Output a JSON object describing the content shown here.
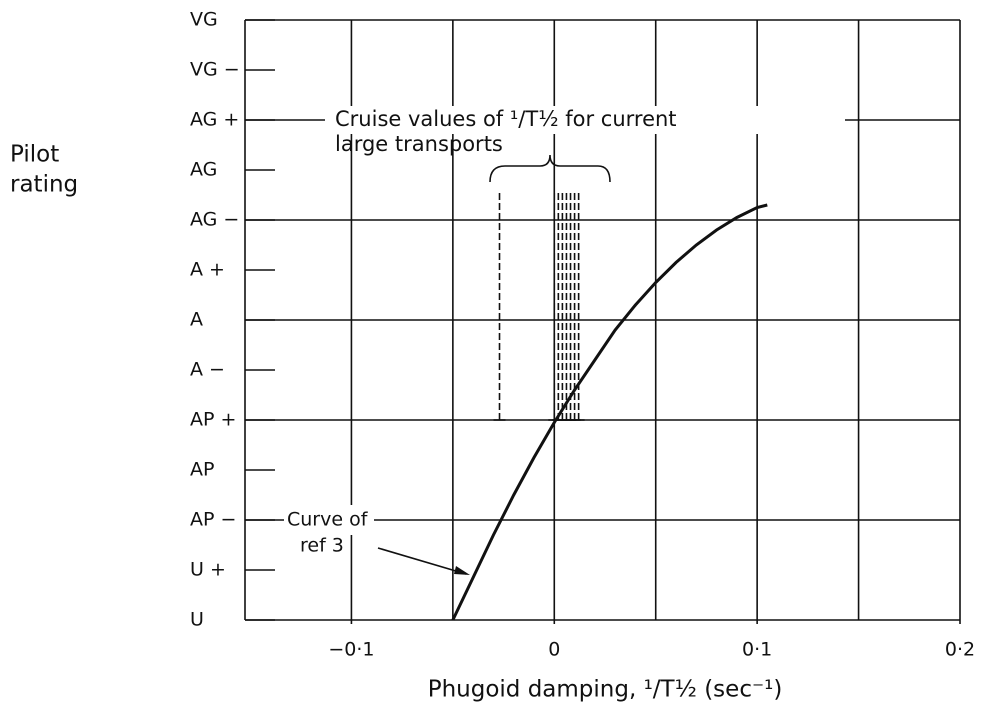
{
  "chart_data": {
    "type": "line",
    "ylabel": [
      "Pilot",
      "rating"
    ],
    "xlabel": "Phugoid damping, ¹/T½ (sec⁻¹)",
    "xlim": [
      -0.15,
      0.2
    ],
    "xticks": [
      {
        "value": -0.1,
        "label": "−0·1"
      },
      0,
      {
        "value": 0.1,
        "label": "0·1"
      },
      {
        "value": 0.2,
        "label": "0·2"
      }
    ],
    "xgrid": [
      -0.1,
      -0.05,
      0,
      0.05,
      0.1,
      0.15,
      0.2
    ],
    "ylim": [
      0,
      12
    ],
    "yticks": [
      {
        "value": 0,
        "label": "U"
      },
      {
        "value": 1,
        "label": "U +"
      },
      {
        "value": 2,
        "label": "AP −"
      },
      {
        "value": 3,
        "label": "AP"
      },
      {
        "value": 4,
        "label": "AP +"
      },
      {
        "value": 5,
        "label": "A −"
      },
      {
        "value": 6,
        "label": "A"
      },
      {
        "value": 7,
        "label": "A +"
      },
      {
        "value": 8,
        "label": "AG −"
      },
      {
        "value": 9,
        "label": "AG"
      },
      {
        "value": 10,
        "label": "AG +"
      },
      {
        "value": 11,
        "label": "VG −"
      },
      {
        "value": 12,
        "label": "VG"
      }
    ],
    "ygrid": [
      0,
      2,
      4,
      6,
      8,
      10,
      12
    ],
    "series": [
      {
        "name": "Curve of ref 3",
        "color": "#111111",
        "x": [
          -0.05,
          -0.04,
          -0.03,
          -0.02,
          -0.01,
          0,
          0.01,
          0.02,
          0.03,
          0.04,
          0.05,
          0.06,
          0.07,
          0.08,
          0.09,
          0.1,
          0.105
        ],
        "values": [
          0,
          0.85,
          1.7,
          2.5,
          3.25,
          3.95,
          4.6,
          5.2,
          5.8,
          6.3,
          6.75,
          7.15,
          7.5,
          7.8,
          8.05,
          8.25,
          8.3
        ]
      }
    ],
    "cruise": {
      "label": [
        "Cruise values of ¹/T½ for current",
        "large transports"
      ],
      "x": [
        -0.027,
        0,
        0.002,
        0.004,
        0.006,
        0.008,
        0.01,
        0.012
      ],
      "range": [
        4,
        8.6
      ]
    }
  }
}
